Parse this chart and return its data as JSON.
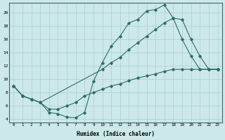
{
  "line1_x": [
    0,
    1,
    2,
    3,
    4,
    5,
    6,
    7,
    8,
    9,
    10,
    11,
    12,
    13,
    14,
    15,
    16,
    17,
    18,
    19,
    20,
    21,
    22,
    23
  ],
  "line1_y": [
    9.0,
    7.5,
    7.0,
    6.5,
    5.0,
    4.8,
    4.3,
    4.2,
    5.0,
    9.7,
    12.5,
    15.0,
    16.5,
    18.5,
    19.0,
    20.3,
    20.5,
    21.2,
    19.2,
    16.0,
    13.5,
    11.5,
    11.5,
    11.5
  ],
  "line2_x": [
    0,
    1,
    2,
    3,
    10,
    11,
    12,
    13,
    14,
    15,
    16,
    17,
    18,
    19,
    20,
    21,
    22,
    23
  ],
  "line2_y": [
    9.0,
    7.5,
    7.0,
    6.5,
    11.5,
    12.5,
    13.3,
    14.5,
    15.5,
    16.5,
    17.5,
    18.5,
    19.2,
    19.0,
    16.0,
    13.5,
    11.5,
    11.5
  ],
  "line3_x": [
    0,
    1,
    2,
    3,
    4,
    5,
    6,
    7,
    8,
    9,
    10,
    11,
    12,
    13,
    14,
    15,
    16,
    17,
    18,
    19,
    20,
    21,
    22,
    23
  ],
  "line3_y": [
    9.0,
    7.5,
    7.0,
    6.5,
    5.5,
    5.5,
    6.0,
    6.5,
    7.5,
    8.0,
    8.5,
    9.0,
    9.3,
    9.8,
    10.2,
    10.5,
    10.8,
    11.2,
    11.5,
    11.5,
    11.5,
    11.5,
    11.5,
    11.5
  ],
  "color": "#2a6e63",
  "bg_color": "#cce8e8",
  "grid_color": "#aad0d0",
  "xlabel": "Humidex (Indice chaleur)",
  "xlim": [
    -0.5,
    23.5
  ],
  "ylim": [
    3.5,
    21.5
  ],
  "yticks": [
    4,
    6,
    8,
    10,
    12,
    14,
    16,
    18,
    20
  ],
  "xticks": [
    0,
    1,
    2,
    3,
    4,
    5,
    6,
    7,
    8,
    9,
    10,
    11,
    12,
    13,
    14,
    15,
    16,
    17,
    18,
    19,
    20,
    21,
    22,
    23
  ]
}
